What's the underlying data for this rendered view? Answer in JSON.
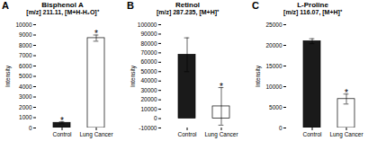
{
  "chart_data": [
    {
      "type": "bar",
      "panel_label": "A",
      "title": "Bisphenol A",
      "subtitle": "[m/z] 211.11, [M+H-H₂O]⁺",
      "ylabel": "Intensity",
      "categories": [
        "Control",
        "Lung Cancer"
      ],
      "values": [
        500,
        8700
      ],
      "errors": [
        100,
        300
      ],
      "colors": [
        "#1a1a1a",
        "#ffffff"
      ],
      "ylim": [
        0,
        10000
      ],
      "yticks": [
        0,
        1000,
        2000,
        3000,
        4000,
        5000,
        6000,
        7000,
        8000,
        9000,
        10000
      ],
      "grid": false,
      "annotations": [
        {
          "category": "Control",
          "text": "*"
        },
        {
          "category": "Lung Cancer",
          "text": "*"
        }
      ]
    },
    {
      "type": "bar",
      "panel_label": "B",
      "title": "Retinol",
      "subtitle": "[m/z] 287.235, [M+H]⁺",
      "ylabel": "Intensity",
      "categories": [
        "Control",
        "Lung Cancer"
      ],
      "values": [
        68000,
        13000
      ],
      "errors": [
        18000,
        20000
      ],
      "colors": [
        "#1a1a1a",
        "#ffffff"
      ],
      "ylim": [
        -10000,
        100000
      ],
      "yticks": [
        -10000,
        0,
        10000,
        20000,
        30000,
        40000,
        50000,
        60000,
        70000,
        80000,
        90000,
        100000
      ],
      "grid": false,
      "annotations": [
        {
          "category": "Lung Cancer",
          "text": "*"
        }
      ]
    },
    {
      "type": "bar",
      "panel_label": "C",
      "title": "L-Proline",
      "subtitle": "[m/z] 116.07, [M+H]⁺",
      "ylabel": "Intensity",
      "categories": [
        "Control",
        "Lung Cancer"
      ],
      "values": [
        21000,
        7000
      ],
      "errors": [
        600,
        1200
      ],
      "colors": [
        "#1a1a1a",
        "#ffffff"
      ],
      "ylim": [
        0,
        25000
      ],
      "yticks": [
        0,
        5000,
        10000,
        15000,
        20000,
        25000
      ],
      "grid": false,
      "annotations": [
        {
          "category": "Lung Cancer",
          "text": "*"
        }
      ]
    }
  ]
}
